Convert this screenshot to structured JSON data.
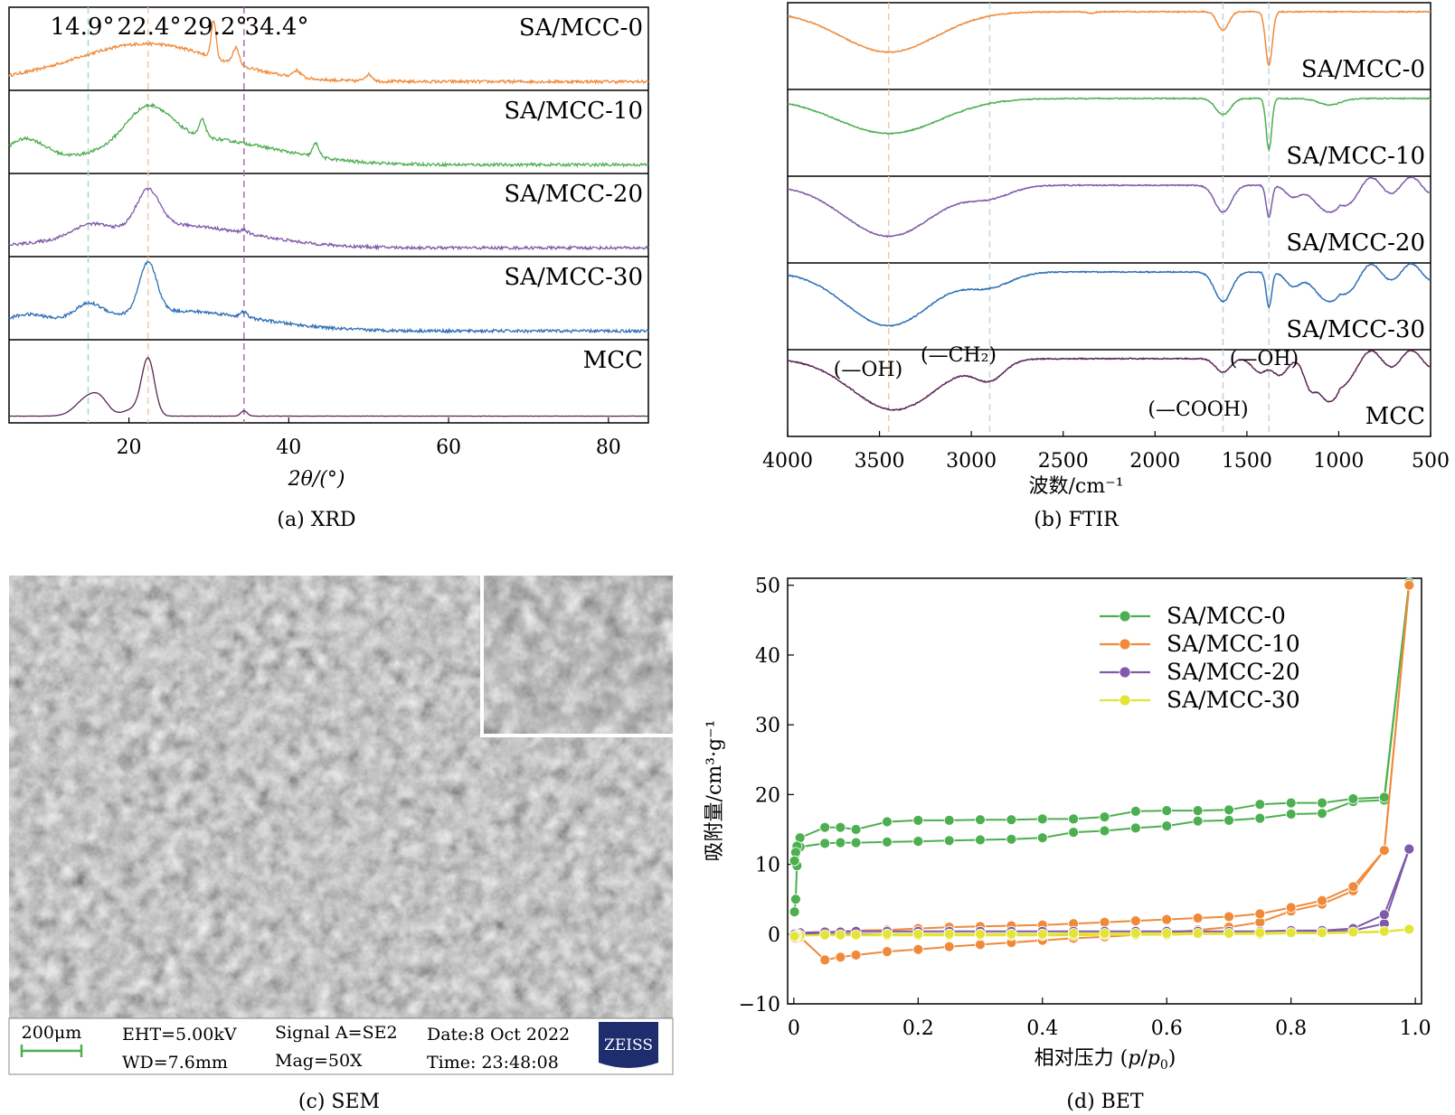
{
  "captions": {
    "a": "(a) XRD",
    "b": "(b) FTIR",
    "c": "(c) SEM",
    "d": "(d) BET"
  },
  "colors": {
    "orange": "#f08a3a",
    "green": "#4caf50",
    "purple": "#7e5aa8",
    "blue": "#2f6fb6",
    "darkpurple": "#5a2555",
    "yellow": "#e4e436"
  },
  "chart_data": [
    {
      "id": "xrd",
      "type": "line",
      "title": "(a) XRD",
      "xlabel": "2θ/(°)",
      "ylabel": "",
      "xlim": [
        5,
        85
      ],
      "xticks": [
        20,
        40,
        60,
        80
      ],
      "peak_labels": [
        "14.9°",
        "22.4°",
        "29.2°",
        "34.4°"
      ],
      "peak_positions": [
        14.9,
        22.4,
        29.2,
        34.4
      ],
      "series": [
        {
          "name": "SA/MCC-0",
          "color": "#f08a3a",
          "peaks": [
            [
              22.4,
              0.25,
              8
            ],
            [
              30.6,
              0.55,
              0.3
            ],
            [
              33.4,
              0.25,
              0.4
            ],
            [
              41,
              0.1,
              0.5
            ],
            [
              50,
              0.1,
              0.5
            ]
          ],
          "base": [
            0.05,
            0.32,
            22,
            0.0
          ]
        },
        {
          "name": "SA/MCC-10",
          "color": "#4caf50",
          "peaks": [
            [
              7,
              0.35,
              2.5
            ],
            [
              22.4,
              0.55,
              2.8
            ],
            [
              29.2,
              0.25,
              0.4
            ],
            [
              43.4,
              0.2,
              0.4
            ]
          ],
          "base": [
            0.05,
            0.4,
            28,
            0.0
          ]
        },
        {
          "name": "SA/MCC-20",
          "color": "#7e5aa8",
          "peaks": [
            [
              14.9,
              0.15,
              2
            ],
            [
              22.4,
              0.55,
              1.4
            ],
            [
              34.4,
              0.05,
              0.4
            ]
          ],
          "base": [
            0.05,
            0.35,
            25,
            0.0
          ]
        },
        {
          "name": "SA/MCC-30",
          "color": "#2f6fb6",
          "peaks": [
            [
              7,
              0.2,
              3
            ],
            [
              14.9,
              0.25,
              1.8
            ],
            [
              22.4,
              0.75,
              1.1
            ],
            [
              34.4,
              0.08,
              0.4
            ]
          ],
          "base": [
            0.05,
            0.3,
            26,
            0.0
          ]
        },
        {
          "name": "MCC",
          "color": "#5a2555",
          "peaks": [
            [
              14.9,
              0.28,
              1.5
            ],
            [
              16.5,
              0.15,
              1.0
            ],
            [
              22.4,
              0.85,
              0.8
            ],
            [
              20.5,
              0.1,
              1.2
            ],
            [
              34.4,
              0.08,
              0.4
            ]
          ],
          "base": [
            0.02,
            0.0,
            30,
            0.0
          ]
        }
      ]
    },
    {
      "id": "ftir",
      "type": "line",
      "title": "(b) FTIR",
      "xlabel": "波数/cm⁻¹",
      "ylabel": "",
      "xlim": [
        4000,
        500
      ],
      "xticks": [
        4000,
        3500,
        3000,
        2500,
        2000,
        1500,
        1000,
        500
      ],
      "annotations": [
        "(—OH)",
        "(—CH₂)",
        "(—COOH)",
        "(—OH)"
      ],
      "ref_lines": [
        3450,
        2900,
        1630,
        1380
      ],
      "series": [
        {
          "name": "SA/MCC-0",
          "color": "#f08a3a",
          "bands": [
            [
              3450,
              0.75,
              260
            ],
            [
              1630,
              0.35,
              30
            ],
            [
              1380,
              1.0,
              18
            ],
            [
              2350,
              0.03,
              20
            ]
          ]
        },
        {
          "name": "SA/MCC-10",
          "color": "#4caf50",
          "bands": [
            [
              3450,
              0.65,
              280
            ],
            [
              1630,
              0.3,
              40
            ],
            [
              1380,
              0.95,
              15
            ],
            [
              1050,
              0.12,
              60
            ]
          ]
        },
        {
          "name": "SA/MCC-20",
          "color": "#7e5aa8",
          "bands": [
            [
              3450,
              0.95,
              240
            ],
            [
              2900,
              0.2,
              120
            ],
            [
              1630,
              0.5,
              45
            ],
            [
              1380,
              0.6,
              15
            ],
            [
              1050,
              0.5,
              80
            ],
            [
              1250,
              0.2,
              40
            ]
          ]
        },
        {
          "name": "SA/MCC-30",
          "color": "#2f6fb6",
          "bands": [
            [
              3450,
              1.0,
              230
            ],
            [
              2900,
              0.25,
              120
            ],
            [
              1630,
              0.55,
              45
            ],
            [
              1380,
              0.65,
              15
            ],
            [
              1050,
              0.55,
              80
            ],
            [
              1250,
              0.25,
              40
            ]
          ]
        },
        {
          "name": "MCC",
          "color": "#5a2555",
          "bands": [
            [
              3420,
              0.95,
              230
            ],
            [
              2900,
              0.35,
              80
            ],
            [
              1630,
              0.25,
              40
            ],
            [
              1430,
              0.25,
              40
            ],
            [
              1320,
              0.3,
              40
            ],
            [
              1160,
              0.35,
              30
            ],
            [
              1050,
              0.8,
              70
            ]
          ]
        }
      ]
    },
    {
      "id": "bet",
      "type": "line",
      "title": "(d) BET",
      "xlabel": "相对压力 (p/p0)",
      "ylabel": "吸附量/cm³·g⁻¹",
      "xlim": [
        -0.01,
        1.01
      ],
      "ylim": [
        -10,
        51
      ],
      "xticks": [
        0,
        0.2,
        0.4,
        0.6,
        0.8,
        1.0
      ],
      "yticks": [
        -10,
        0,
        10,
        20,
        30,
        40,
        50
      ],
      "legend": "top-right",
      "p_ads": [
        0.001,
        0.003,
        0.005,
        0.01,
        0.05,
        0.075,
        0.1,
        0.15,
        0.2,
        0.25,
        0.3,
        0.35,
        0.4,
        0.45,
        0.5,
        0.55,
        0.6,
        0.65,
        0.7,
        0.75,
        0.8,
        0.85,
        0.9,
        0.95,
        0.99
      ],
      "p_des": [
        0.99,
        0.95,
        0.9,
        0.85,
        0.8,
        0.75,
        0.7,
        0.65,
        0.6,
        0.55,
        0.5,
        0.45,
        0.4,
        0.35,
        0.3,
        0.25,
        0.2,
        0.15,
        0.1,
        0.075,
        0.05,
        0.01,
        0.005,
        0.003,
        0.001
      ],
      "series": [
        {
          "name": "SA/MCC-0",
          "color": "#4caf50",
          "adsorption": [
            3.2,
            5.0,
            9.8,
            12.5,
            13.0,
            13.1,
            13.1,
            13.2,
            13.3,
            13.4,
            13.5,
            13.6,
            13.8,
            14.6,
            14.8,
            15.2,
            15.5,
            16.2,
            16.3,
            16.6,
            17.2,
            17.3,
            19.0,
            19.2,
            50.3
          ],
          "desorption": [
            50.3,
            19.6,
            19.4,
            18.8,
            18.8,
            18.6,
            17.8,
            17.7,
            17.7,
            17.6,
            16.8,
            16.5,
            16.5,
            16.4,
            16.4,
            16.3,
            16.3,
            16.1,
            15.0,
            15.3,
            15.3,
            13.8,
            12.6,
            11.7,
            10.5
          ]
        },
        {
          "name": "SA/MCC-10",
          "color": "#f08a3a",
          "adsorption": [
            -0.6,
            -0.6,
            -0.5,
            -0.4,
            -3.7,
            -3.3,
            -3.0,
            -2.5,
            -2.2,
            -1.8,
            -1.5,
            -1.2,
            -0.9,
            -0.6,
            -0.4,
            -0.1,
            0.2,
            0.6,
            1.0,
            1.7,
            3.3,
            4.3,
            6.2,
            12.0,
            50.0
          ],
          "desorption": [
            50.0,
            12.0,
            6.8,
            4.8,
            3.8,
            2.9,
            2.5,
            2.3,
            2.1,
            1.9,
            1.7,
            1.5,
            1.3,
            1.2,
            1.1,
            1.0,
            0.8,
            0.6,
            0.5,
            0.4,
            0.3,
            0.2,
            0.1,
            0.0,
            -0.1
          ]
        },
        {
          "name": "SA/MCC-20",
          "color": "#7e5aa8",
          "adsorption": [
            0.0,
            0.0,
            0.0,
            0.0,
            0.0,
            0.0,
            0.0,
            0.0,
            0.0,
            0.0,
            0.0,
            0.0,
            0.0,
            0.0,
            0.0,
            0.0,
            0.0,
            0.0,
            0.1,
            0.1,
            0.2,
            0.3,
            0.5,
            1.5,
            12.2
          ],
          "desorption": [
            12.2,
            2.8,
            0.8,
            0.5,
            0.5,
            0.4,
            0.4,
            0.4,
            0.4,
            0.4,
            0.4,
            0.4,
            0.4,
            0.4,
            0.4,
            0.4,
            0.4,
            0.4,
            0.4,
            0.3,
            0.3,
            0.2,
            0.1,
            0.0,
            0.0
          ]
        },
        {
          "name": "SA/MCC-30",
          "color": "#e4e436",
          "adsorption": [
            -0.3,
            -0.3,
            -0.3,
            -0.2,
            -0.2,
            -0.2,
            -0.2,
            -0.2,
            -0.2,
            -0.2,
            -0.2,
            -0.2,
            -0.2,
            -0.2,
            -0.1,
            -0.1,
            -0.1,
            0.0,
            0.0,
            0.0,
            0.1,
            0.1,
            0.2,
            0.3,
            0.7
          ],
          "desorption": [
            0.7,
            0.4,
            0.3,
            0.2,
            0.2,
            0.2,
            0.1,
            0.1,
            0.1,
            0.1,
            0.1,
            0.1,
            0.0,
            0.0,
            0.0,
            0.0,
            0.0,
            0.0,
            -0.1,
            -0.1,
            -0.1,
            -0.2,
            -0.2,
            -0.2,
            -0.3
          ]
        }
      ]
    }
  ],
  "sem": {
    "scale_bar": "200μm",
    "eht": "EHT=5.00kV",
    "wd": "WD=7.6mm",
    "signal": "Signal A=SE2",
    "mag": "Mag=50X",
    "date": "Date:8 Oct 2022",
    "time": "Time: 23:48:08",
    "logo": "ZEISS"
  }
}
